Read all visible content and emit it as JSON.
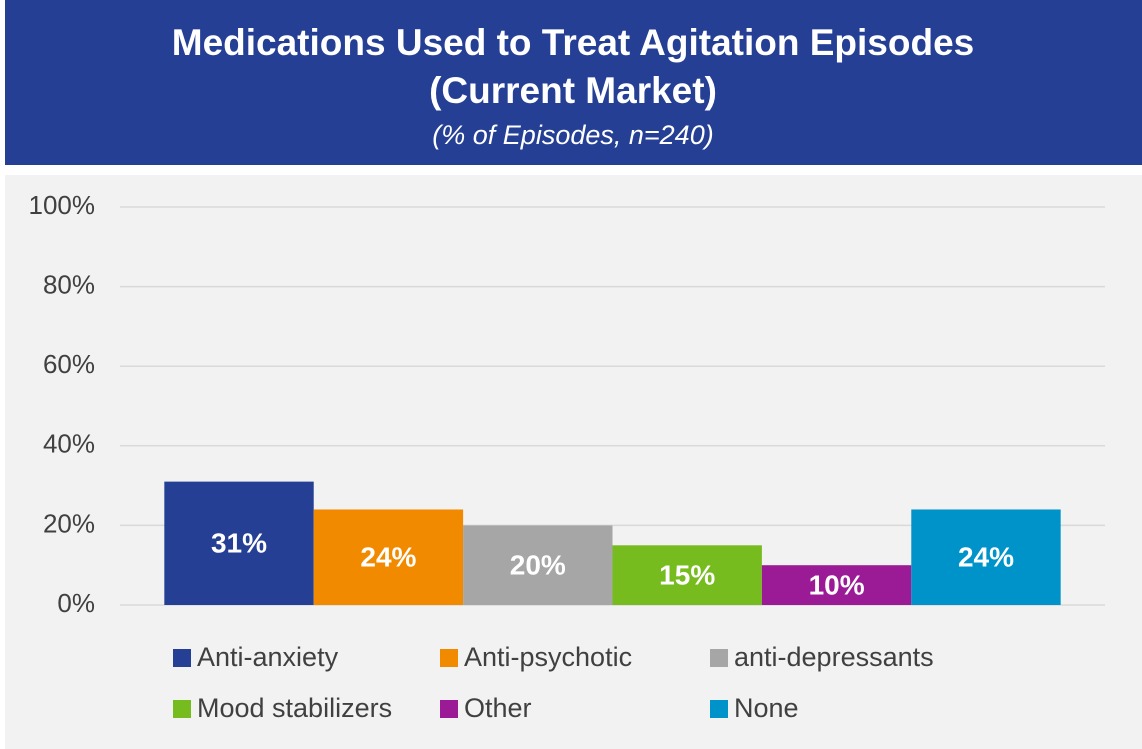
{
  "chart_data": {
    "type": "bar",
    "title": "Medications Used to Treat Agitation Episodes",
    "title_line2": "(Current Market)",
    "subtitle": "(% of Episodes, n=240)",
    "categories": [
      "Anti-anxiety",
      "Anti-psychotic",
      "anti-depressants",
      "Mood stabilizers",
      "Other",
      "None"
    ],
    "values": [
      31,
      24,
      20,
      15,
      10,
      24
    ],
    "value_labels": [
      "31%",
      "24%",
      "20%",
      "15%",
      "10%",
      "24%"
    ],
    "colors": [
      "#253f94",
      "#f28a00",
      "#a6a6a6",
      "#77bc1f",
      "#9b1b97",
      "#0093c9"
    ],
    "ylim": [
      0,
      100
    ],
    "yticks": [
      {
        "value": 0,
        "label": "0%"
      },
      {
        "value": 20,
        "label": "20%"
      },
      {
        "value": 40,
        "label": "40%"
      },
      {
        "value": 60,
        "label": "60%"
      },
      {
        "value": 80,
        "label": "80%"
      },
      {
        "value": 100,
        "label": "100%"
      }
    ],
    "grid": true,
    "legend": "bottom"
  }
}
